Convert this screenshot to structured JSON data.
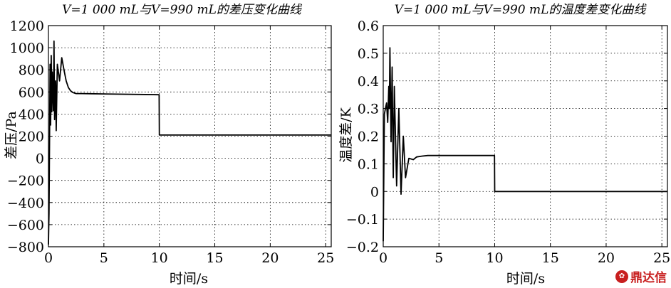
{
  "colors": {
    "line": "#000000",
    "grid": "#000000",
    "watermark": "#c81e1e"
  },
  "watermark": {
    "icon": "flower-logo-icon",
    "text": "鼎达信"
  },
  "chart_data": [
    {
      "type": "line",
      "title": "V=1 000 mL与V=990 mL的差压变化曲线",
      "xlabel": "时间/s",
      "ylabel": "差压/Pa",
      "xlim": [
        0,
        25.5
      ],
      "ylim": [
        -800,
        1200
      ],
      "xticks": [
        0,
        5,
        10,
        15,
        20,
        25
      ],
      "yticks": [
        -800,
        -600,
        -400,
        -200,
        0,
        200,
        400,
        600,
        800,
        1000,
        1200
      ],
      "grid": true,
      "series": [
        {
          "x": [
            0,
            0.05,
            0.1,
            0.15,
            0.2,
            0.25,
            0.3,
            0.35,
            0.45,
            0.5,
            0.55,
            0.65,
            0.7,
            0.8,
            1.0,
            1.2,
            1.4,
            1.6,
            1.8,
            2.0,
            2.2,
            2.5,
            3.0,
            5.0,
            9.98,
            10.0,
            25.5
          ],
          "y": [
            -780,
            -500,
            200,
            850,
            300,
            930,
            420,
            780,
            430,
            1060,
            350,
            700,
            250,
            850,
            700,
            910,
            800,
            700,
            640,
            610,
            595,
            585,
            585,
            582,
            575,
            210,
            210
          ]
        }
      ]
    },
    {
      "type": "line",
      "title": "V=1 000 mL与V=990 mL的温度差变化曲线",
      "xlabel": "时间/s",
      "ylabel": "温度差/K",
      "xlim": [
        0,
        25.5
      ],
      "ylim": [
        -0.2,
        0.6
      ],
      "xticks": [
        0,
        5,
        10,
        15,
        20,
        25
      ],
      "yticks": [
        -0.2,
        -0.1,
        0,
        0.1,
        0.2,
        0.3,
        0.4,
        0.5,
        0.6
      ],
      "grid": true,
      "series": [
        {
          "x": [
            0,
            0.1,
            0.2,
            0.3,
            0.4,
            0.5,
            0.55,
            0.6,
            0.7,
            0.8,
            0.9,
            1.0,
            1.2,
            1.4,
            1.6,
            1.8,
            2.0,
            2.3,
            2.7,
            3.0,
            3.5,
            4.0,
            9.98,
            10.0,
            25.5
          ],
          "y": [
            -0.18,
            0.28,
            0.3,
            0.32,
            0.25,
            0.38,
            0.3,
            0.52,
            0.18,
            0.45,
            0.05,
            0.38,
            0.02,
            0.3,
            -0.01,
            0.2,
            0.05,
            0.12,
            0.115,
            0.125,
            0.128,
            0.13,
            0.13,
            0.0,
            0.0
          ]
        }
      ]
    }
  ]
}
